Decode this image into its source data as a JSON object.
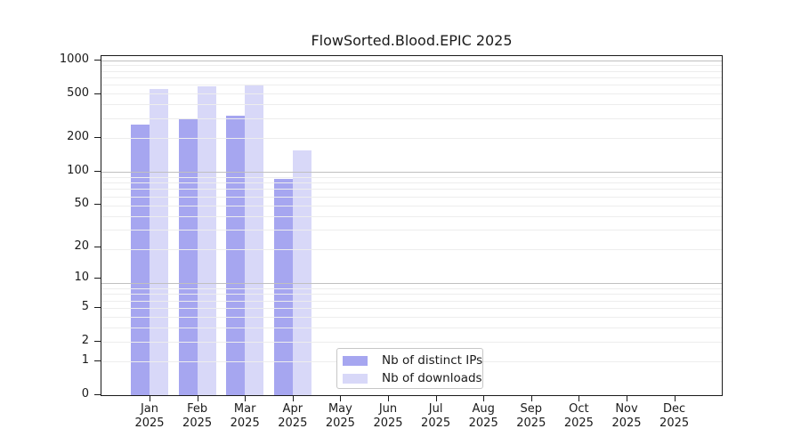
{
  "chart_data": {
    "type": "bar",
    "title": "FlowSorted.Blood.EPIC 2025",
    "categories": [
      "Jan",
      "Feb",
      "Mar",
      "Apr",
      "May",
      "Jun",
      "Jul",
      "Aug",
      "Sep",
      "Oct",
      "Nov",
      "Dec"
    ],
    "category_year": "2025",
    "series": [
      {
        "name": "Nb of distinct IPs",
        "color": "#a6a6f0",
        "values": [
          264,
          298,
          317,
          86,
          0,
          0,
          0,
          0,
          0,
          0,
          0,
          0
        ]
      },
      {
        "name": "Nb of downloads",
        "color": "#d8d8f8",
        "values": [
          558,
          588,
          600,
          155,
          0,
          0,
          0,
          0,
          0,
          0,
          0,
          0
        ]
      }
    ],
    "yticks": [
      0,
      1,
      2,
      5,
      10,
      20,
      50,
      100,
      200,
      500,
      1000
    ],
    "ylim": [
      0,
      1095
    ],
    "xlabel": "",
    "ylabel": "",
    "scale": "log1p",
    "grid": "horizontal",
    "legend_position": "bottom-center-inside"
  },
  "colors": {
    "bar_distinct_ips": "#a6a6f0",
    "bar_downloads": "#d8d8f8",
    "grid_minor": "#ededed",
    "grid_major": "#c0c0c0",
    "axis": "#1a1a1a",
    "background": "#ffffff"
  }
}
